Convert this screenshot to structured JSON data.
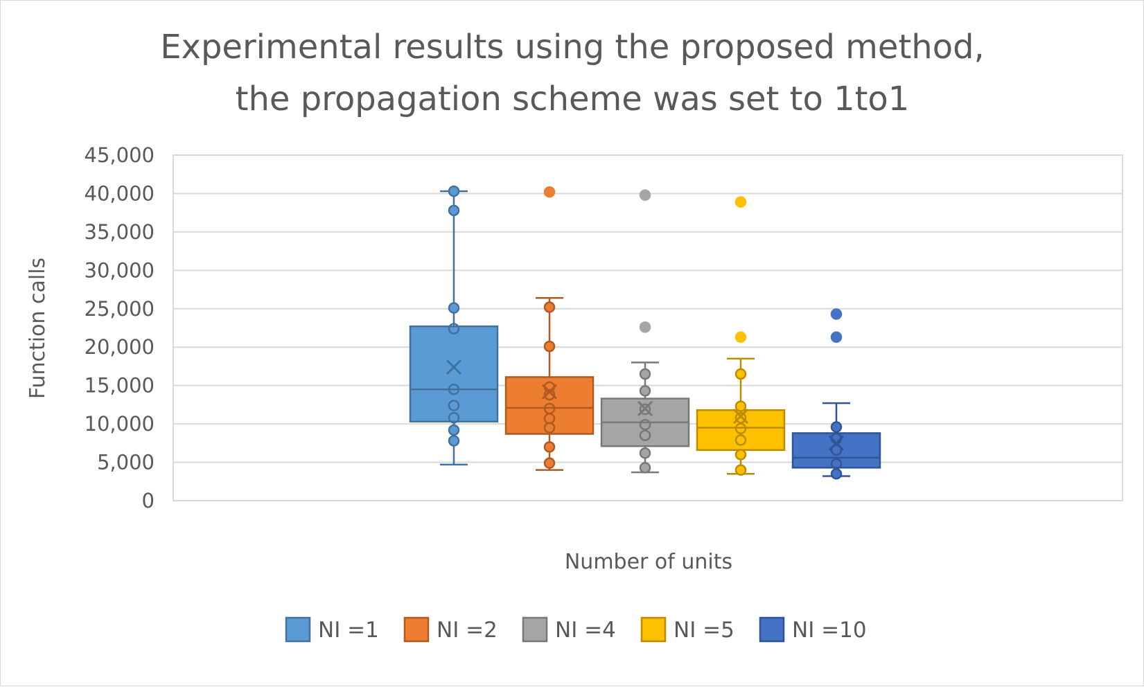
{
  "chart_data": {
    "type": "box",
    "title": "Experimental results using the proposed method, the propagation scheme was set to 1to1",
    "xlabel": "Number of units",
    "ylabel": "Function calls",
    "ylim": [
      0,
      45000
    ],
    "y_ticks": [
      "0",
      "5,000",
      "10,000",
      "15,000",
      "20,000",
      "25,000",
      "30,000",
      "35,000",
      "40,000",
      "45,000"
    ],
    "grid": true,
    "legend_position": "bottom",
    "series": [
      {
        "name": "NI =1",
        "color": "#5B9BD5",
        "edge": "#41719C",
        "whisker_low": 4700,
        "q1": 10300,
        "median": 14500,
        "q3": 22700,
        "whisker_high": 40300,
        "mean": 17400,
        "points": [
          40300,
          37800,
          25100,
          22400,
          14500,
          12400,
          10800,
          9200,
          7800
        ]
      },
      {
        "name": "NI =2",
        "color": "#ED7D31",
        "edge": "#AE5A21",
        "whisker_low": 4000,
        "q1": 8700,
        "median": 12100,
        "q3": 16100,
        "whisker_high": 26400,
        "mean": 14200,
        "points": [
          40200,
          25200,
          20100,
          14800,
          13800,
          12000,
          10700,
          9500,
          7000,
          4900
        ]
      },
      {
        "name": "NI =4",
        "color": "#A5A5A5",
        "edge": "#787878",
        "whisker_low": 3700,
        "q1": 7100,
        "median": 10200,
        "q3": 13300,
        "whisker_high": 18000,
        "mean": 12000,
        "points": [
          39800,
          22600,
          16500,
          14300,
          11900,
          9900,
          8500,
          6200,
          4300
        ]
      },
      {
        "name": "NI =5",
        "color": "#FFC000",
        "edge": "#BC8C00",
        "whisker_low": 3500,
        "q1": 6600,
        "median": 9500,
        "q3": 11800,
        "whisker_high": 18500,
        "mean": 11000,
        "points": [
          38900,
          21300,
          16500,
          12300,
          10800,
          9400,
          7900,
          6000,
          4000
        ]
      },
      {
        "name": "NI =10",
        "color": "#4472C4",
        "edge": "#2F5597",
        "whisker_low": 3200,
        "q1": 4300,
        "median": 5600,
        "q3": 8800,
        "whisker_high": 12700,
        "mean": 7500,
        "points": [
          24300,
          21300,
          9600,
          8100,
          6600,
          4800,
          3500
        ]
      }
    ]
  }
}
